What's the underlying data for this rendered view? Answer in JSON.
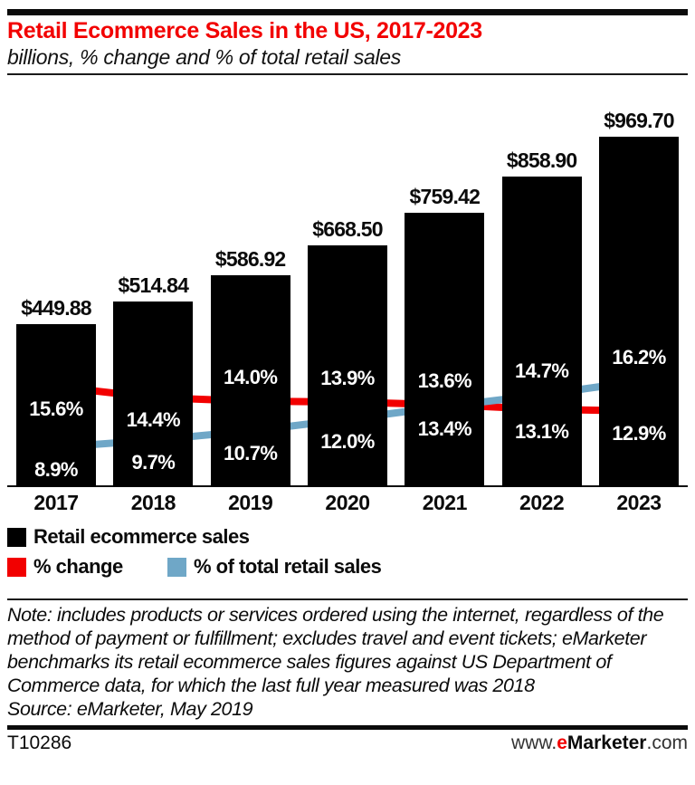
{
  "header": {
    "title": "Retail Ecommerce Sales in the US, 2017-2023",
    "subtitle": "billions, % change and % of total retail sales"
  },
  "chart_data": {
    "type": "bar+line",
    "title": "Retail Ecommerce Sales in the US, 2017-2023",
    "subtitle": "billions, % change and % of total retail sales",
    "categories": [
      "2017",
      "2018",
      "2019",
      "2020",
      "2021",
      "2022",
      "2023"
    ],
    "series": [
      {
        "name": "Retail ecommerce sales",
        "type": "bar",
        "unit": "billions of US dollars",
        "color": "#000000",
        "values": [
          449.88,
          514.84,
          586.92,
          668.5,
          759.42,
          858.9,
          969.7
        ],
        "labels": [
          "$449.88",
          "$514.84",
          "$586.92",
          "$668.50",
          "$759.42",
          "$858.90",
          "$969.70"
        ]
      },
      {
        "name": "% change",
        "type": "line",
        "unit": "percent",
        "color": "#f20000",
        "values": [
          15.6,
          14.4,
          14.0,
          13.9,
          13.6,
          13.1,
          12.9
        ],
        "labels": [
          "15.6%",
          "14.4%",
          "14.0%",
          "13.9%",
          "13.6%",
          "13.1%",
          "12.9%"
        ],
        "label_pos": [
          "below",
          "below",
          "above",
          "above",
          "above",
          "below",
          "below"
        ]
      },
      {
        "name": "% of total retail sales",
        "type": "line",
        "unit": "percent",
        "color": "#6fa7c7",
        "values": [
          8.9,
          9.7,
          10.7,
          12.0,
          13.4,
          14.7,
          16.2
        ],
        "labels": [
          "8.9%",
          "9.7%",
          "10.7%",
          "12.0%",
          "13.4%",
          "14.7%",
          "16.2%"
        ],
        "label_pos": [
          "below",
          "below",
          "below",
          "below",
          "below",
          "above",
          "above"
        ]
      }
    ],
    "ylim_bars": [
      0,
      1115
    ],
    "grid": false,
    "legend_position": "bottom"
  },
  "footer": {
    "note": "Note: includes products or services ordered using the internet, regardless of the method of payment or fulfillment; excludes travel and event tickets; eMarketer benchmarks its retail ecommerce sales figures against US Department of Commerce data, for which the last full year measured was 2018",
    "source": "Source: eMarketer, May 2019",
    "chart_id": "T10286",
    "website": {
      "prefix": "www.",
      "brand_e": "e",
      "brand_rest": "Marketer",
      "suffix": ".com"
    }
  }
}
